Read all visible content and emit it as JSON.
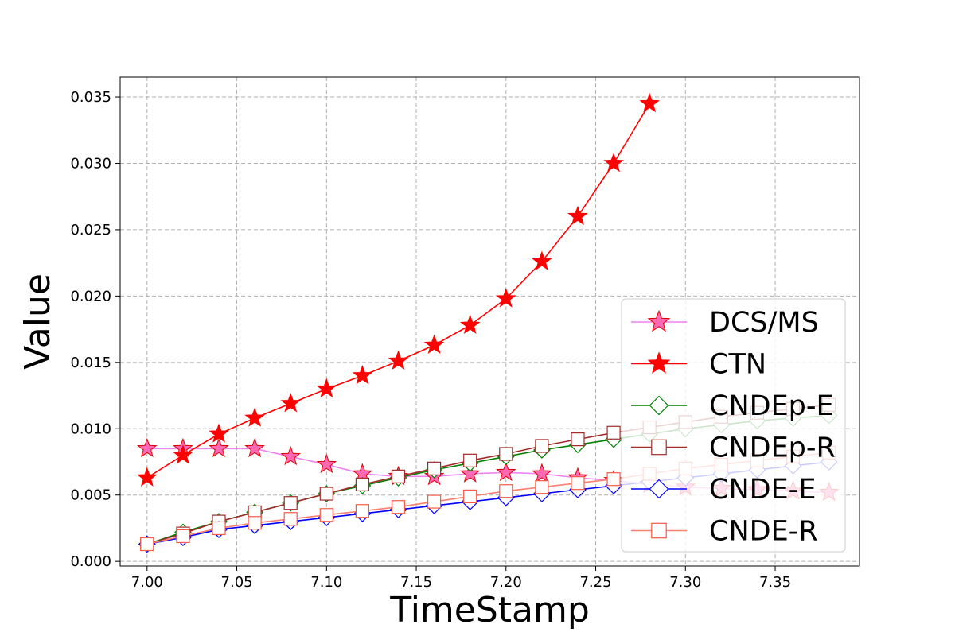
{
  "chart_data": {
    "type": "line",
    "title": "",
    "xlabel": "TimeStamp",
    "ylabel": "Value",
    "xlim": [
      6.985,
      7.397
    ],
    "ylim": [
      -0.00035,
      0.0365
    ],
    "x_ticks": [
      "7.00",
      "7.05",
      "7.10",
      "7.15",
      "7.20",
      "7.25",
      "7.30",
      "7.35"
    ],
    "y_ticks": [
      "0.000",
      "0.005",
      "0.010",
      "0.015",
      "0.020",
      "0.025",
      "0.030",
      "0.035"
    ],
    "grid": true,
    "legend_position": "lower right",
    "series": [
      {
        "name": "DCS/MS",
        "color": "#ee82ee",
        "marker": "star",
        "marker_fill": "#ff69b4",
        "marker_edge": "#dd0000",
        "x": [
          7.0,
          7.02,
          7.04,
          7.06,
          7.08,
          7.1,
          7.12,
          7.14,
          7.16,
          7.18,
          7.2,
          7.22,
          7.24,
          7.26,
          7.28,
          7.3,
          7.32,
          7.34,
          7.36,
          7.38
        ],
        "values": [
          0.0085,
          0.0085,
          0.0085,
          0.0085,
          0.0079,
          0.0073,
          0.0066,
          0.0064,
          0.0064,
          0.0066,
          0.0067,
          0.0066,
          0.0063,
          0.0061,
          0.0058,
          0.0056,
          0.0055,
          0.0054,
          0.0053,
          0.0052
        ]
      },
      {
        "name": "CTN",
        "color": "#ff0000",
        "marker": "star",
        "marker_fill": "#ff0000",
        "marker_edge": "#ff0000",
        "x": [
          7.0,
          7.02,
          7.04,
          7.06,
          7.08,
          7.1,
          7.12,
          7.14,
          7.16,
          7.18,
          7.2,
          7.22,
          7.24,
          7.26,
          7.28
        ],
        "values": [
          0.0063,
          0.008,
          0.0096,
          0.0108,
          0.0119,
          0.013,
          0.014,
          0.0151,
          0.0163,
          0.0178,
          0.0198,
          0.0226,
          0.026,
          0.03,
          0.0345
        ]
      },
      {
        "name": "CNDEp-E",
        "color": "#008000",
        "marker": "diamond",
        "marker_fill": "#ffffff",
        "marker_edge": "#008000",
        "x": [
          7.0,
          7.02,
          7.04,
          7.06,
          7.08,
          7.1,
          7.12,
          7.14,
          7.16,
          7.18,
          7.2,
          7.22,
          7.24,
          7.26,
          7.28,
          7.3,
          7.32,
          7.34,
          7.36,
          7.38
        ],
        "values": [
          0.0013,
          0.0022,
          0.003,
          0.0037,
          0.0044,
          0.0051,
          0.0057,
          0.0063,
          0.0069,
          0.0074,
          0.0079,
          0.0084,
          0.0088,
          0.0092,
          0.0096,
          0.01,
          0.0103,
          0.0106,
          0.0108,
          0.011
        ]
      },
      {
        "name": "CNDEp-R",
        "color": "#a52a2a",
        "marker": "square",
        "marker_fill": "#ffffff",
        "marker_edge": "#a52a2a",
        "x": [
          7.0,
          7.02,
          7.04,
          7.06,
          7.08,
          7.1,
          7.12,
          7.14,
          7.16,
          7.18,
          7.2,
          7.22,
          7.24,
          7.26,
          7.28,
          7.3,
          7.32,
          7.34,
          7.36,
          7.38
        ],
        "values": [
          0.0013,
          0.0021,
          0.003,
          0.0037,
          0.0044,
          0.0051,
          0.0058,
          0.0064,
          0.007,
          0.0076,
          0.0081,
          0.0087,
          0.0092,
          0.0097,
          0.0101,
          0.0105,
          0.0109,
          0.0112,
          0.0115,
          0.0118
        ]
      },
      {
        "name": "CNDE-E",
        "color": "#0000ff",
        "marker": "diamond",
        "marker_fill": "#ffffff",
        "marker_edge": "#0000ff",
        "x": [
          7.0,
          7.02,
          7.04,
          7.06,
          7.08,
          7.1,
          7.12,
          7.14,
          7.16,
          7.18,
          7.2,
          7.22,
          7.24,
          7.26,
          7.28,
          7.3,
          7.32,
          7.34,
          7.36,
          7.38
        ],
        "values": [
          0.0013,
          0.0018,
          0.0024,
          0.0027,
          0.003,
          0.0033,
          0.0036,
          0.0039,
          0.0042,
          0.0045,
          0.0048,
          0.0051,
          0.0054,
          0.0057,
          0.006,
          0.0063,
          0.0066,
          0.0069,
          0.0072,
          0.0075
        ]
      },
      {
        "name": "CNDE-R",
        "color": "#fa8072",
        "marker": "square",
        "marker_fill": "#ffffff",
        "marker_edge": "#fa5a46",
        "x": [
          7.0,
          7.02,
          7.04,
          7.06,
          7.08,
          7.1,
          7.12,
          7.14,
          7.16,
          7.18,
          7.2,
          7.22,
          7.24,
          7.26,
          7.28,
          7.3,
          7.32,
          7.34,
          7.36,
          7.38
        ],
        "values": [
          0.0013,
          0.0019,
          0.0025,
          0.0029,
          0.0032,
          0.0035,
          0.0038,
          0.0041,
          0.0045,
          0.0049,
          0.0053,
          0.0056,
          0.0059,
          0.0062,
          0.0066,
          0.007,
          0.0073,
          0.0076,
          0.0079,
          0.0082
        ]
      }
    ]
  }
}
